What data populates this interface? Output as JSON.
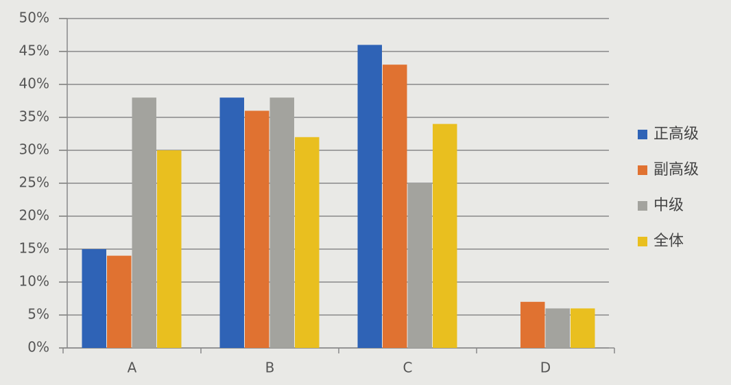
{
  "chart_data": {
    "type": "bar",
    "categories": [
      "A",
      "B",
      "C",
      "D"
    ],
    "series": [
      {
        "name": "正高级",
        "color": "#2f63b6",
        "values": [
          15,
          38,
          46,
          0
        ]
      },
      {
        "name": "副高级",
        "color": "#e07231",
        "values": [
          14,
          36,
          43,
          7
        ]
      },
      {
        "name": "中级",
        "color": "#a3a39e",
        "values": [
          38,
          38,
          25,
          6
        ]
      },
      {
        "name": "全体",
        "color": "#e9bf1f",
        "values": [
          30,
          32,
          34,
          6
        ]
      }
    ],
    "ylim": [
      0,
      50
    ],
    "yticks": [
      {
        "value": 0,
        "label": "0%"
      },
      {
        "value": 5,
        "label": "5%"
      },
      {
        "value": 10,
        "label": "10%"
      },
      {
        "value": 15,
        "label": "15%"
      },
      {
        "value": 20,
        "label": "20%"
      },
      {
        "value": 25,
        "label": "25%"
      },
      {
        "value": 30,
        "label": "30%"
      },
      {
        "value": 35,
        "label": "35%"
      },
      {
        "value": 40,
        "label": "40%"
      },
      {
        "value": 45,
        "label": "45%"
      },
      {
        "value": 50,
        "label": "50%"
      }
    ],
    "grid": true,
    "legend": "right"
  }
}
